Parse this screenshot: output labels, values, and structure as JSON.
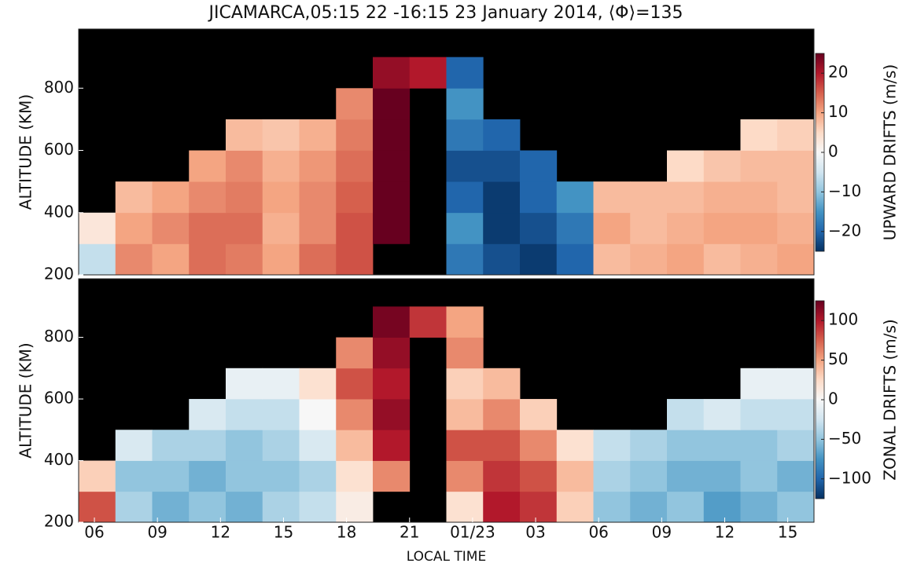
{
  "chart_data": [
    {
      "type": "heatmap",
      "title": "JICAMARCA,05:15 22 -16:15 23 January 2014, ⟨Φ⟩=135",
      "ylabel": "ALTITUDE (KM)",
      "colorbar_label": "UPWARD DRIFTS (m/s)",
      "background": "#000000",
      "colormap": [
        "#053061",
        "#2166ac",
        "#4393c3",
        "#92c5de",
        "#d1e5f0",
        "#f7f7f7",
        "#fddbc7",
        "#f4a582",
        "#d6604d",
        "#b2182b",
        "#67001f"
      ],
      "xlim": [
        5.25,
        40.25
      ],
      "ylim": [
        200,
        990
      ],
      "yticks": [
        200,
        400,
        600,
        800
      ],
      "clim": [
        -25,
        25
      ],
      "cticks": [
        20,
        10,
        0,
        {
          "value": -10,
          "label": "−10"
        },
        {
          "value": -20,
          "label": "−20"
        }
      ],
      "x": [
        5.25,
        7,
        8.75,
        10.5,
        12.25,
        14,
        15.75,
        17.5,
        19.25,
        21,
        22.75,
        24.5,
        26.25,
        28,
        29.75,
        31.5,
        33.25,
        35,
        36.75,
        38.5,
        40.25
      ],
      "y": [
        200,
        300,
        400,
        500,
        600,
        700,
        800,
        900
      ],
      "z": [
        [
          -6,
          12,
          10,
          14,
          13,
          10,
          14,
          16,
          null,
          null,
          -18,
          -22,
          -24,
          -20,
          8,
          9,
          10,
          8,
          9,
          10
        ],
        [
          3,
          10,
          12,
          14,
          14,
          9,
          12,
          16,
          25,
          null,
          -15,
          -24,
          -22,
          -18,
          10,
          8,
          9,
          10,
          10,
          9
        ],
        [
          null,
          8,
          10,
          12,
          13,
          10,
          12,
          15,
          25,
          null,
          -20,
          -24,
          -20,
          -15,
          8,
          8,
          8,
          9,
          9,
          8
        ],
        [
          null,
          null,
          null,
          10,
          12,
          9,
          11,
          14,
          25,
          null,
          -22,
          -22,
          -20,
          null,
          null,
          null,
          5,
          7,
          8,
          8
        ],
        [
          null,
          null,
          null,
          null,
          8,
          7,
          9,
          13,
          25,
          null,
          -18,
          -20,
          null,
          null,
          null,
          null,
          null,
          null,
          5,
          6
        ],
        [
          null,
          null,
          null,
          null,
          null,
          null,
          null,
          12,
          25,
          null,
          -15,
          null,
          null,
          null,
          null,
          null,
          null,
          null,
          null,
          null
        ],
        [
          null,
          null,
          null,
          null,
          null,
          null,
          null,
          null,
          22,
          20,
          -20,
          null,
          null,
          null,
          null,
          null,
          null,
          null,
          null,
          null
        ]
      ]
    },
    {
      "type": "heatmap",
      "xlabel": "LOCAL TIME",
      "ylabel": "ALTITUDE (KM)",
      "colorbar_label": "ZONAL DRIFTS (m/s)",
      "background": "#000000",
      "colormap": [
        "#053061",
        "#2166ac",
        "#4393c3",
        "#92c5de",
        "#d1e5f0",
        "#f7f7f7",
        "#fddbc7",
        "#f4a582",
        "#d6604d",
        "#b2182b",
        "#67001f"
      ],
      "xlim": [
        5.25,
        40.25
      ],
      "ylim": [
        200,
        990
      ],
      "xticks": [
        {
          "value": 6,
          "label": "06"
        },
        {
          "value": 9,
          "label": "09"
        },
        12,
        15,
        18,
        21,
        {
          "value": 24,
          "label": "01/23"
        },
        {
          "value": 27,
          "label": "03"
        },
        {
          "value": 30,
          "label": "06"
        },
        {
          "value": 33,
          "label": "09"
        },
        {
          "value": 36,
          "label": "12"
        },
        {
          "value": 39,
          "label": "15"
        }
      ],
      "yticks": [
        200,
        400,
        600,
        800
      ],
      "clim": [
        -125,
        125
      ],
      "cticks": [
        100,
        50,
        0,
        {
          "value": -50,
          "label": "−50"
        },
        {
          "value": -100,
          "label": "−100"
        }
      ],
      "x": [
        5.25,
        7,
        8.75,
        10.5,
        12.25,
        14,
        15.75,
        17.5,
        19.25,
        21,
        22.75,
        24.5,
        26.25,
        28,
        29.75,
        31.5,
        33.25,
        35,
        36.75,
        38.5,
        40.25
      ],
      "y": [
        200,
        300,
        400,
        500,
        600,
        700,
        800,
        900
      ],
      "z": [
        [
          80,
          -40,
          -60,
          -50,
          -60,
          -40,
          -30,
          10,
          null,
          null,
          20,
          100,
          90,
          30,
          -50,
          -60,
          -50,
          -70,
          -60,
          -50
        ],
        [
          30,
          -50,
          -50,
          -60,
          -50,
          -50,
          -40,
          20,
          60,
          null,
          60,
          90,
          80,
          40,
          -40,
          -50,
          -60,
          -60,
          -50,
          -60
        ],
        [
          null,
          -20,
          -40,
          -40,
          -50,
          -40,
          -20,
          40,
          100,
          null,
          80,
          80,
          60,
          20,
          -30,
          -40,
          -50,
          -50,
          -50,
          -40
        ],
        [
          null,
          null,
          null,
          -20,
          -30,
          -30,
          0,
          60,
          110,
          null,
          40,
          60,
          30,
          null,
          null,
          null,
          -30,
          -20,
          -30,
          -30
        ],
        [
          null,
          null,
          null,
          null,
          -10,
          -10,
          20,
          80,
          100,
          null,
          30,
          40,
          null,
          null,
          null,
          null,
          null,
          null,
          -10,
          -10
        ],
        [
          null,
          null,
          null,
          null,
          null,
          null,
          null,
          60,
          110,
          null,
          60,
          null,
          null,
          null,
          null,
          null,
          null,
          null,
          null,
          null
        ],
        [
          null,
          null,
          null,
          null,
          null,
          null,
          null,
          null,
          120,
          90,
          50,
          null,
          null,
          null,
          null,
          null,
          null,
          null,
          null,
          null
        ]
      ]
    }
  ]
}
